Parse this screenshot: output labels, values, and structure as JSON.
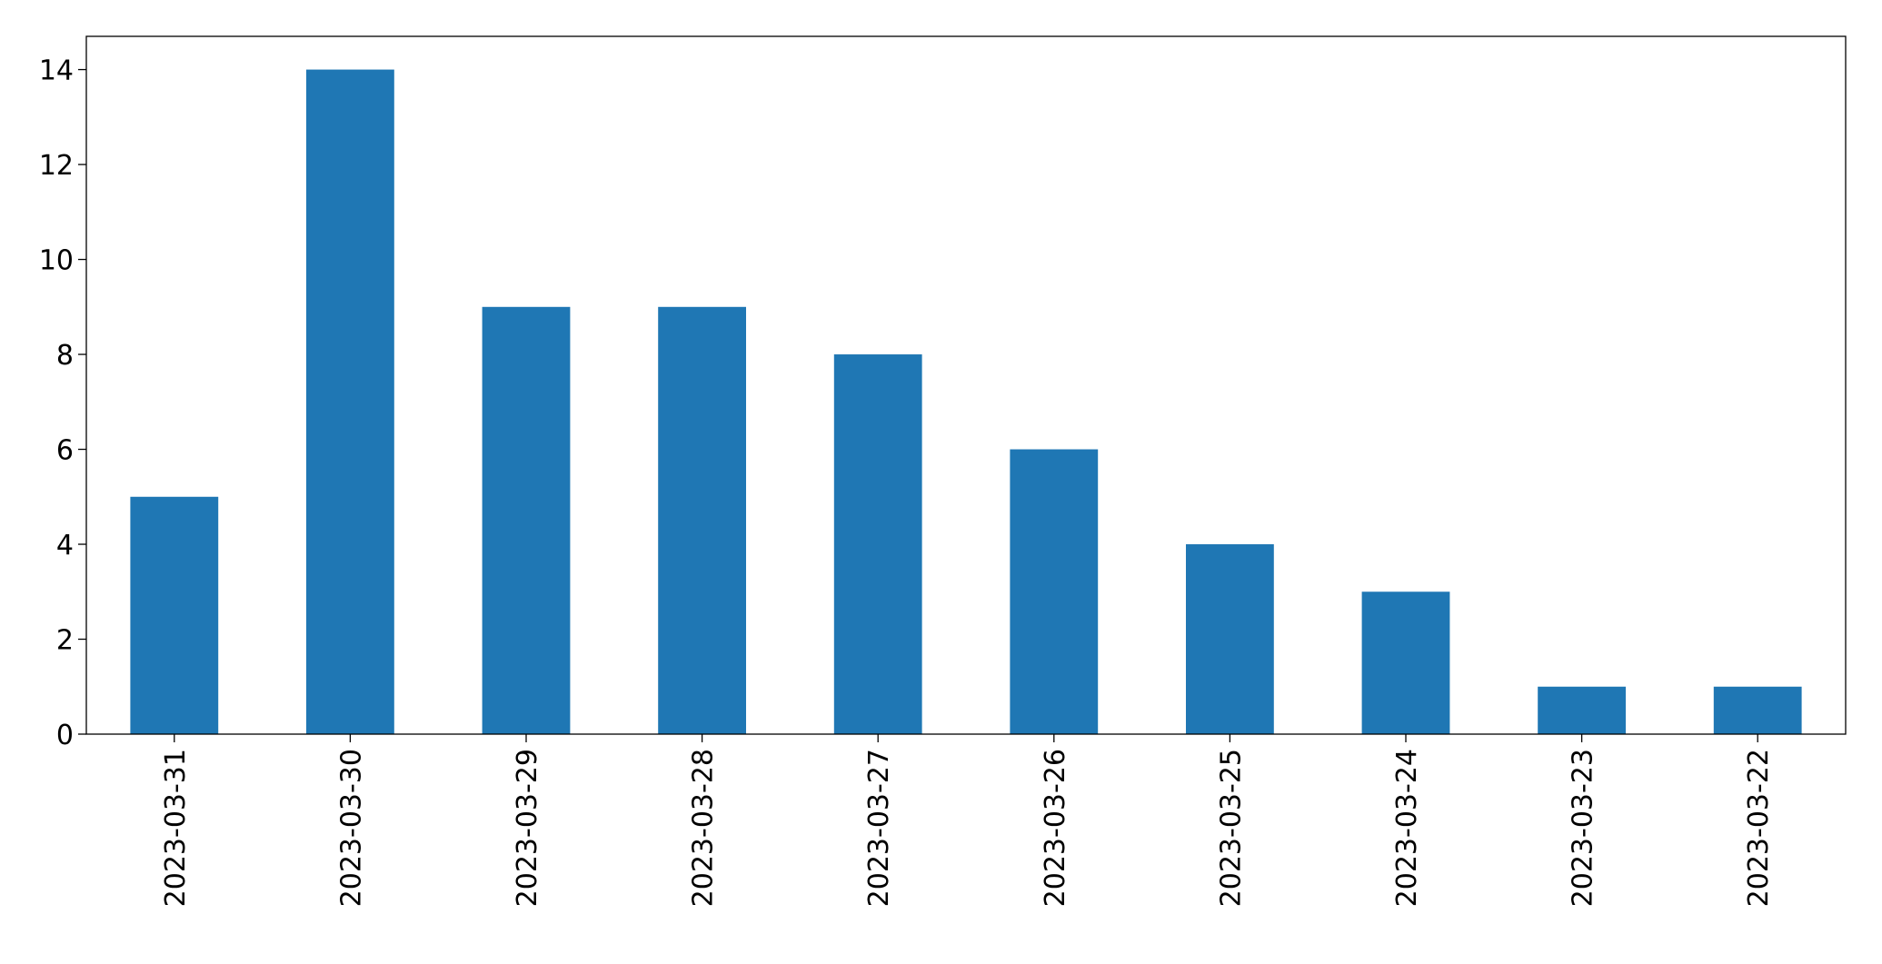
{
  "chart_data": {
    "type": "bar",
    "categories": [
      "2023-03-31",
      "2023-03-30",
      "2023-03-29",
      "2023-03-28",
      "2023-03-27",
      "2023-03-26",
      "2023-03-25",
      "2023-03-24",
      "2023-03-23",
      "2023-03-22"
    ],
    "values": [
      5,
      14,
      9,
      9,
      8,
      6,
      4,
      3,
      1,
      1
    ],
    "color": "#1f77b4",
    "ylim": [
      0,
      14.7
    ],
    "yticks": [
      0,
      2,
      4,
      6,
      8,
      10,
      12,
      14
    ],
    "grid": false
  }
}
